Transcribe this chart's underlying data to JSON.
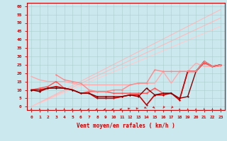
{
  "background_color": "#cce8ef",
  "grid_color": "#aacccc",
  "xlabel": "Vent moyen/en rafales ( km/h )",
  "xlim": [
    -0.5,
    23.5
  ],
  "ylim": [
    -2,
    62
  ],
  "yticks": [
    0,
    5,
    10,
    15,
    20,
    25,
    30,
    35,
    40,
    45,
    50,
    55,
    60
  ],
  "xticks": [
    0,
    1,
    2,
    3,
    4,
    5,
    6,
    7,
    8,
    9,
    10,
    11,
    12,
    13,
    14,
    15,
    16,
    17,
    18,
    19,
    20,
    21,
    22,
    23
  ],
  "diag_lines": [
    {
      "x0": 0,
      "y0": 0,
      "x1": 23,
      "y1": 58,
      "color": "#ffbbbb",
      "lw": 0.8
    },
    {
      "x0": 0,
      "y0": 0,
      "x1": 23,
      "y1": 53,
      "color": "#ffbbbb",
      "lw": 0.8
    },
    {
      "x0": 0,
      "y0": 0,
      "x1": 23,
      "y1": 48,
      "color": "#ffcccc",
      "lw": 0.8
    }
  ],
  "lines": [
    {
      "x": [
        0,
        1,
        2,
        3,
        4,
        5,
        6,
        7,
        8,
        9,
        10,
        11,
        12,
        13,
        14,
        15,
        16,
        17,
        18,
        19,
        20,
        21,
        22,
        23
      ],
      "y": [
        18,
        16,
        15,
        15,
        15,
        14,
        13,
        13,
        13,
        13,
        13,
        13,
        13,
        14,
        14,
        14,
        21,
        14,
        21,
        21,
        26,
        24,
        24,
        24
      ],
      "color": "#ffaaaa",
      "lw": 1.0,
      "marker": null,
      "ms": 0
    },
    {
      "x": [
        0,
        1,
        2,
        3,
        4,
        5,
        6,
        7,
        8,
        9,
        10,
        11,
        12,
        13,
        14,
        15,
        16,
        17,
        18,
        19,
        20,
        21,
        22,
        23
      ],
      "y": [
        10,
        11,
        12,
        15,
        11,
        10,
        8,
        9,
        9,
        9,
        8,
        8,
        8,
        8,
        8,
        11,
        8,
        8,
        4,
        21,
        21,
        26,
        24,
        25
      ],
      "color": "#ff5555",
      "lw": 1.0,
      "marker": "D",
      "ms": 1.5
    },
    {
      "x": [
        0,
        1,
        2,
        3,
        4,
        5,
        6,
        7,
        8,
        9,
        10,
        11,
        12,
        13,
        14,
        15,
        16,
        17,
        18,
        19,
        20,
        21,
        22,
        23
      ],
      "y": [
        10,
        10,
        11,
        12,
        11,
        10,
        8,
        8,
        5,
        5,
        5,
        6,
        7,
        7,
        1,
        7,
        7,
        8,
        4,
        21,
        21,
        27,
        24,
        25
      ],
      "color": "#cc0000",
      "lw": 1.2,
      "marker": "D",
      "ms": 1.5
    },
    {
      "x": [
        0,
        1,
        2,
        3,
        4,
        5,
        6,
        7,
        8,
        9,
        10,
        11,
        12,
        13,
        14,
        15,
        16,
        17,
        18,
        19,
        20,
        21,
        22,
        23
      ],
      "y": [
        10,
        9,
        11,
        11,
        11,
        10,
        8,
        8,
        6,
        6,
        6,
        6,
        7,
        6,
        11,
        7,
        8,
        8,
        5,
        6,
        21,
        27,
        24,
        25
      ],
      "color": "#880000",
      "lw": 1.0,
      "marker": "D",
      "ms": 1.5
    },
    {
      "x": [
        3,
        4,
        5,
        6,
        7,
        8,
        9,
        10,
        11,
        12,
        13,
        14,
        15,
        16,
        17,
        18,
        19,
        20,
        21,
        22,
        23
      ],
      "y": [
        19,
        16,
        15,
        14,
        10,
        9,
        9,
        10,
        10,
        13,
        14,
        14,
        22,
        21,
        21,
        21,
        21,
        21,
        27,
        24,
        25
      ],
      "color": "#ff8888",
      "lw": 1.0,
      "marker": "D",
      "ms": 1.5
    }
  ],
  "arrows": {
    "x": [
      0,
      1,
      2,
      3,
      4,
      5,
      6,
      7,
      8,
      9,
      10,
      11,
      12,
      13,
      14,
      15,
      16,
      17,
      18,
      19,
      20,
      21,
      22,
      23
    ],
    "directions_deg": [
      180,
      175,
      175,
      180,
      180,
      190,
      195,
      200,
      205,
      210,
      215,
      225,
      260,
      265,
      295,
      310,
      35,
      40,
      175,
      178,
      182,
      180,
      180,
      172
    ],
    "y_data": -1.2,
    "color": "#dd2222",
    "size": 4.0
  }
}
